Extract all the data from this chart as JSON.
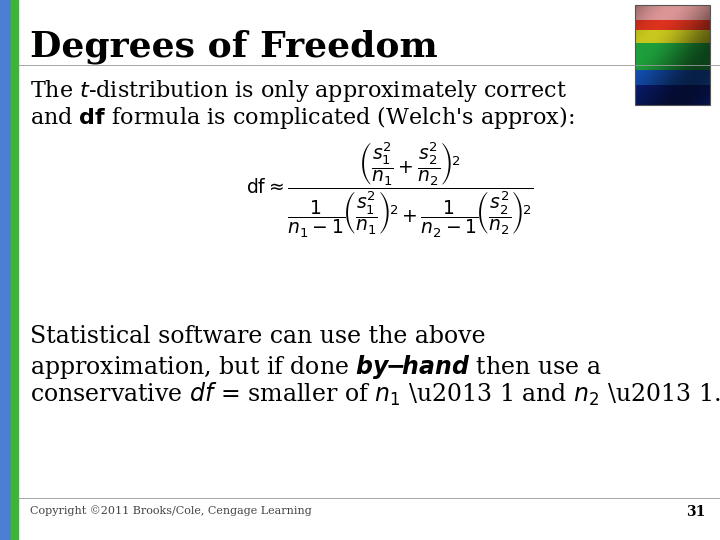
{
  "title": "Degrees of Freedom",
  "bg_color": "#ffffff",
  "left_bar_green": "#3db535",
  "left_bar_blue": "#4a7fd4",
  "title_fontsize": 26,
  "body_fontsize": 16,
  "small_fontsize": 8,
  "copyright_text": "Copyright ©2011 Brooks/Cole, Cengage Learning",
  "page_number": "31"
}
